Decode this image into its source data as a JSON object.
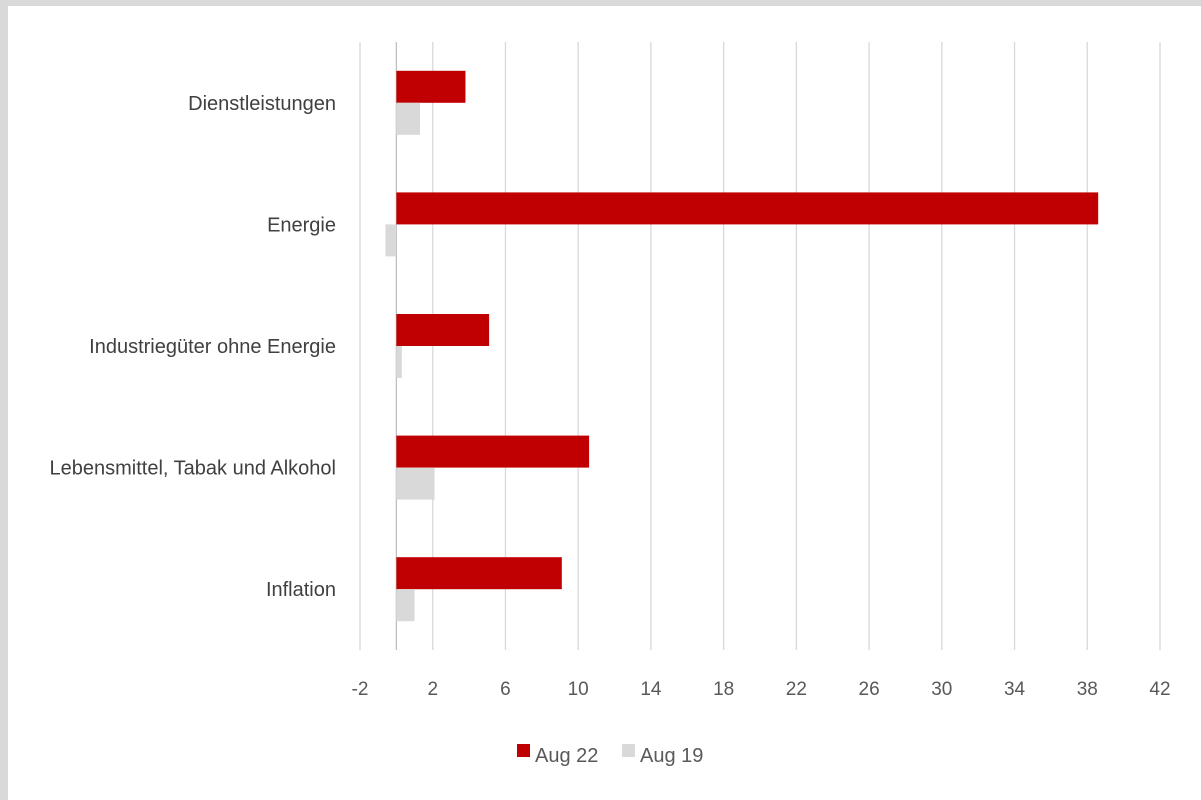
{
  "chart_data": {
    "type": "bar",
    "orientation": "horizontal",
    "categories": [
      "Dienstleistungen",
      "Energie",
      "Industriegüter ohne Energie",
      "Lebensmittel, Tabak und Alkohol",
      "Inflation"
    ],
    "series": [
      {
        "name": "Aug 22",
        "values": [
          3.8,
          38.6,
          5.1,
          10.6,
          9.1
        ],
        "color": "#c00000"
      },
      {
        "name": "Aug 19",
        "values": [
          1.3,
          -0.6,
          0.3,
          2.1,
          1.0
        ],
        "color": "#d9d9d9"
      }
    ],
    "xlim": [
      -2,
      42
    ],
    "xticks": [
      -2,
      2,
      6,
      10,
      14,
      18,
      22,
      26,
      30,
      34,
      38,
      42
    ],
    "xlabel": "",
    "ylabel": "",
    "title": "",
    "grid": "vertical",
    "legend_position": "bottom"
  }
}
